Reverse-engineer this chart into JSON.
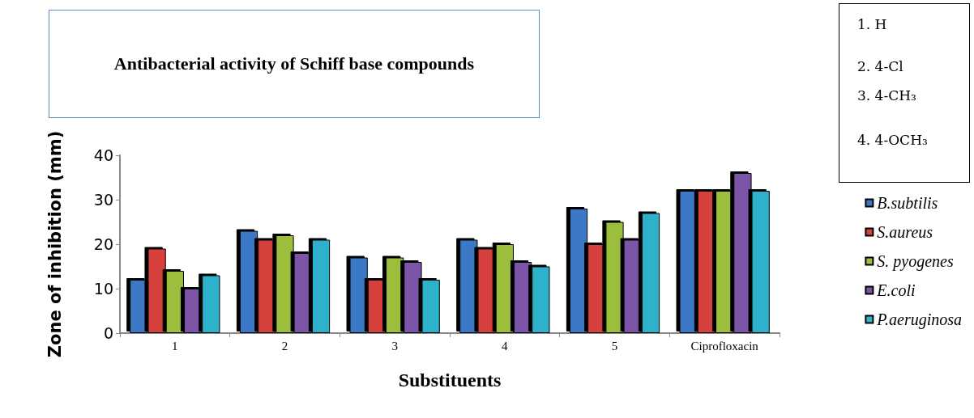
{
  "chart_data": {
    "type": "bar",
    "title": "Antibacterial activity of Schiff base compounds",
    "xlabel": "Substituents",
    "ylabel": "Zone of inhibition (mm)",
    "categories": [
      "1",
      "2",
      "3",
      "4",
      "5",
      "Ciprofloxacin"
    ],
    "series": [
      {
        "name": "B.subtilis",
        "color": "#3a78c6",
        "values": [
          12,
          23,
          17,
          21,
          28,
          32
        ]
      },
      {
        "name": "S.aureus",
        "color": "#d6403c",
        "values": [
          19,
          21,
          12,
          19,
          20,
          32
        ]
      },
      {
        "name": "S. pyogenes",
        "color": "#9bbf3e",
        "values": [
          14,
          22,
          17,
          20,
          25,
          32
        ]
      },
      {
        "name": "E.coli",
        "color": "#7c55a8",
        "values": [
          10,
          18,
          16,
          16,
          21,
          36
        ]
      },
      {
        "name": "P.aeruginosa",
        "color": "#2fb2cc",
        "values": [
          13,
          21,
          12,
          15,
          27,
          32
        ]
      }
    ],
    "ylim": [
      0,
      40
    ],
    "yticks": [
      0,
      10,
      20,
      30,
      40
    ],
    "grid": false,
    "legend": "right",
    "annotations": [
      "1. H",
      "2. 4-Cl",
      "3. 4-CH₃",
      "4. 4-OCH₃"
    ]
  }
}
